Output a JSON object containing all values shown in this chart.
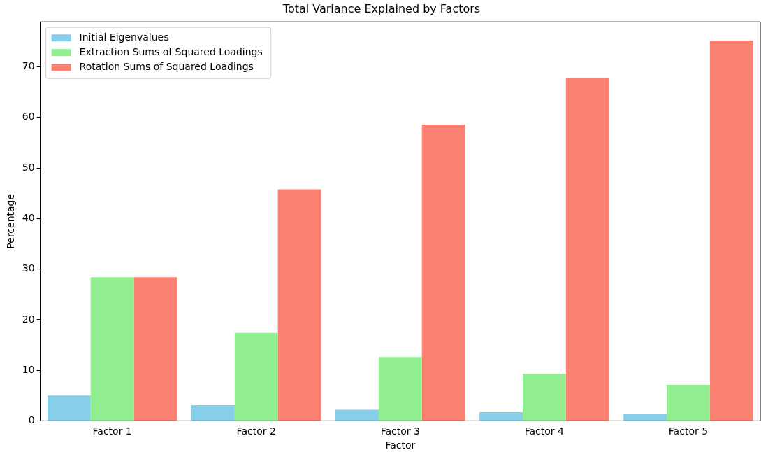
{
  "chart_data": {
    "type": "bar",
    "title": "Total Variance Explained by Factors",
    "xlabel": "Factor",
    "ylabel": "Percentage",
    "categories": [
      "Factor 1",
      "Factor 2",
      "Factor 3",
      "Factor 4",
      "Factor 5"
    ],
    "series": [
      {
        "name": "Initial Eigenvalues",
        "color": "#87ceeb",
        "values": [
          5.0,
          3.1,
          2.2,
          1.7,
          1.3
        ]
      },
      {
        "name": "Extraction Sums of Squared Loadings",
        "color": "#90ee90",
        "values": [
          28.4,
          17.4,
          12.6,
          9.3,
          7.1
        ]
      },
      {
        "name": "Rotation Sums of Squared Loadings",
        "color": "#fa8072",
        "values": [
          28.4,
          45.8,
          58.6,
          67.8,
          75.2
        ]
      }
    ],
    "ylim": [
      0,
      78.9
    ],
    "yticks": [
      0,
      10,
      20,
      30,
      40,
      50,
      60,
      70
    ],
    "grid": false,
    "legend": "top left"
  }
}
